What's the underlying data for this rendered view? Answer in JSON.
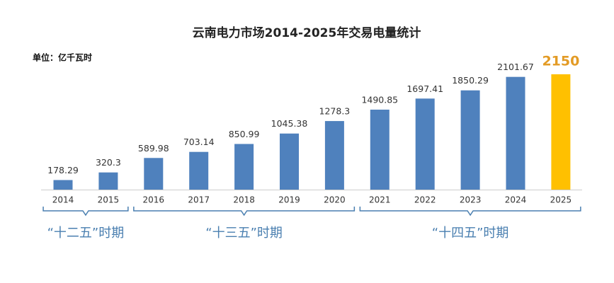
{
  "chart_data": {
    "type": "bar",
    "title": "云南电力市场2014-2025年交易电量统计",
    "unit": "单位：亿千瓦时",
    "categories": [
      "2014",
      "2015",
      "2016",
      "2017",
      "2018",
      "2019",
      "2020",
      "2021",
      "2022",
      "2023",
      "2024",
      "2025"
    ],
    "values": [
      178.29,
      320.3,
      589.98,
      703.14,
      850.99,
      1045.38,
      1278.3,
      1490.85,
      1697.41,
      1850.29,
      2101.67,
      2150
    ],
    "colors": [
      "#4f81bd",
      "#4f81bd",
      "#4f81bd",
      "#4f81bd",
      "#4f81bd",
      "#4f81bd",
      "#4f81bd",
      "#4f81bd",
      "#4f81bd",
      "#4f81bd",
      "#4f81bd",
      "#ffc000"
    ],
    "periods": [
      {
        "label": "“十二五”时期",
        "from": "2014",
        "to": "2015"
      },
      {
        "label": "“十三五”时期",
        "from": "2016",
        "to": "2020"
      },
      {
        "label": "“十四五”时期",
        "from": "2021",
        "to": "2025"
      }
    ]
  }
}
